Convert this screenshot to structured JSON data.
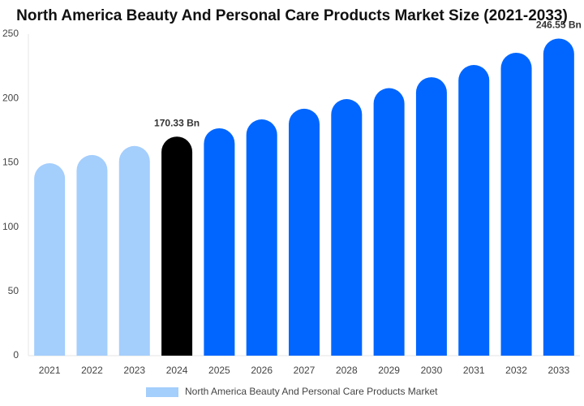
{
  "chart_data": {
    "type": "bar",
    "title": "North America Beauty And Personal Care Products Market Size (2021-2033)",
    "categories": [
      "2021",
      "2022",
      "2023",
      "2024",
      "2025",
      "2026",
      "2027",
      "2028",
      "2029",
      "2030",
      "2031",
      "2032",
      "2033"
    ],
    "series": [
      {
        "name": "North America Beauty And Personal Care Products Market",
        "color": "#a4cefc",
        "values": [
          149.6,
          156,
          163,
          170.33,
          176.8,
          183.7,
          192,
          199.5,
          208,
          216.5,
          226,
          235.5,
          246.55
        ],
        "value_labels": [
          null,
          null,
          null,
          "170.33 Bn",
          null,
          null,
          null,
          null,
          null,
          null,
          null,
          null,
          "246.55 Bn"
        ],
        "colors": [
          "#a4cefc",
          "#a4cefc",
          "#a4cefc",
          "#000000",
          "#0066ff",
          "#0066ff",
          "#0066ff",
          "#0066ff",
          "#0066ff",
          "#0066ff",
          "#0066ff",
          "#0066ff",
          "#0066ff"
        ]
      }
    ],
    "ylim": [
      0,
      250
    ],
    "yticks": [
      0,
      50,
      100,
      150,
      200,
      250
    ],
    "grid": false
  }
}
